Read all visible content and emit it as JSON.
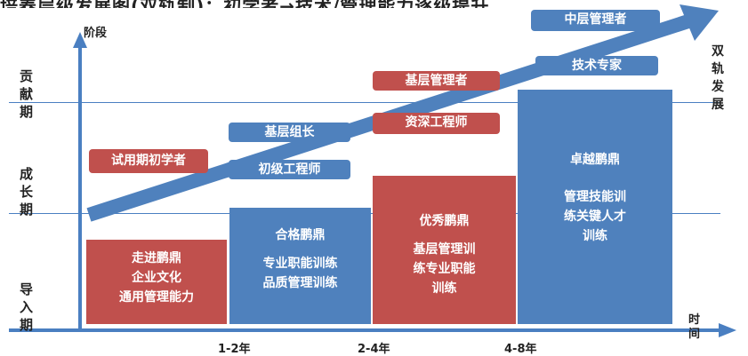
{
  "header_cut_text": "培养层级发展图(双轨制)：初学者→技术/管理能力逐级提升",
  "y_axis_label": "阶段",
  "x_axis_label": "时间",
  "stages": [
    "导入期",
    "成长期",
    "贡献期"
  ],
  "x_ticks": [
    "1-2年",
    "2-4年",
    "4-8年"
  ],
  "dual_track_label": "双轨发展",
  "columns": [
    {
      "title": "走进鹏鼎",
      "lines": [
        "企业文化",
        "通用管理能力"
      ]
    },
    {
      "title": "合格鹏鼎",
      "lines": [
        "专业职能训练",
        "品质管理训练"
      ]
    },
    {
      "title": "优秀鹏鼎",
      "lines": [
        "基层管理训",
        "练专业职能",
        "训练"
      ]
    },
    {
      "title": "卓越鹏鼎",
      "lines": [
        "管理技能训",
        "练关键人才",
        "训练"
      ]
    }
  ],
  "tags": {
    "trainee": "试用期初学者",
    "team_leader": "基层组长",
    "junior_engineer": "初级工程师",
    "grassroots_manager": "基层管理者",
    "senior_engineer": "资深工程师",
    "middle_manager": "中层管理者",
    "tech_expert": "技术专家"
  },
  "colors": {
    "red": "#c0504d",
    "blue": "#4f81bd",
    "axis": "#4a7fc1"
  }
}
